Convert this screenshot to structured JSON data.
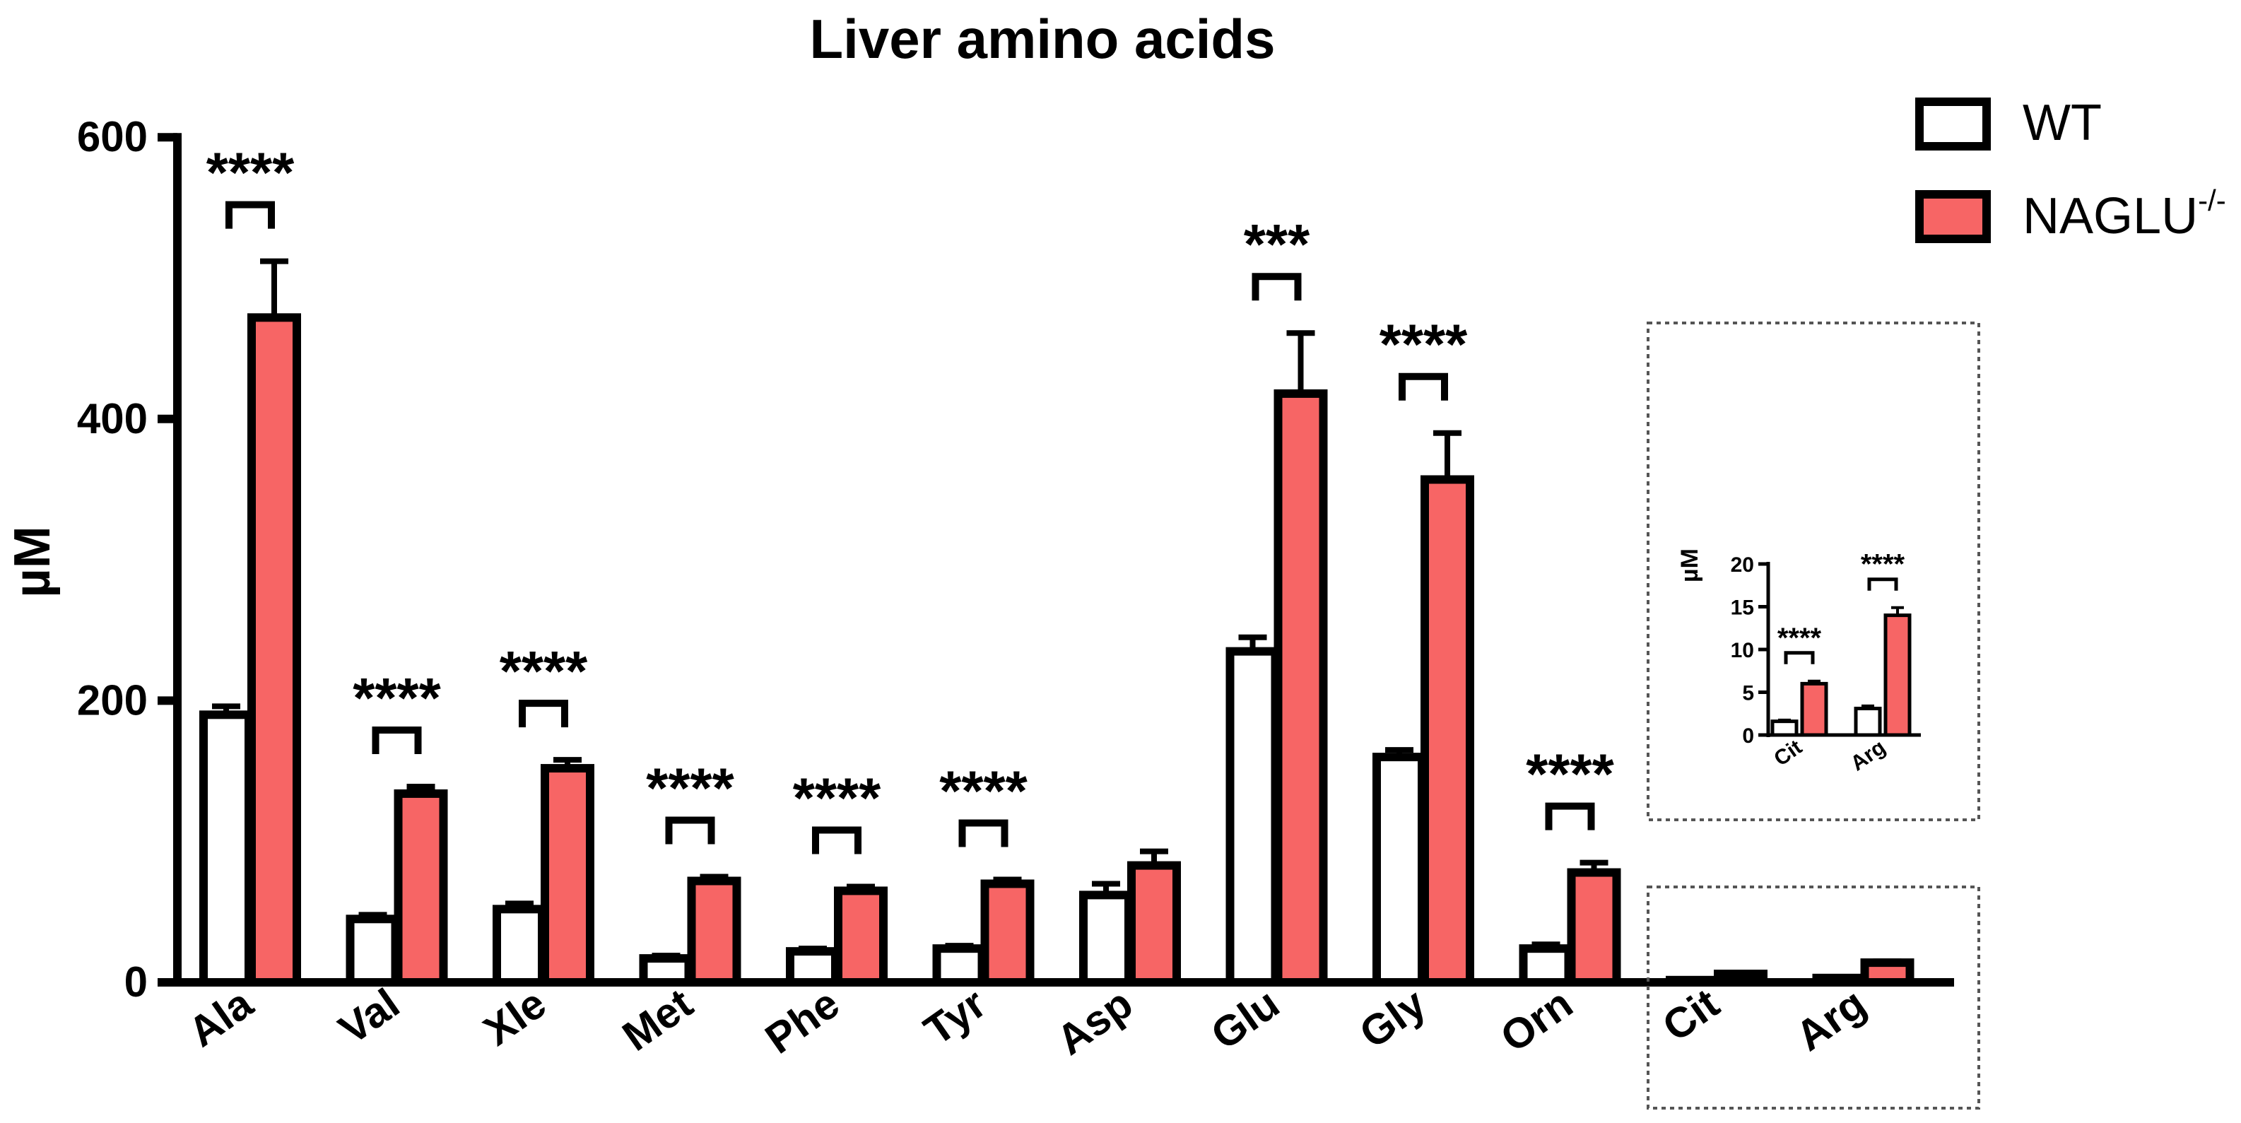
{
  "colors": {
    "wt_fill": "#ffffff",
    "naglu_fill": "#f76565",
    "stroke": "#000000",
    "box_stroke": "#555555"
  },
  "chart_data": [
    {
      "type": "bar",
      "title": "Liver amino acids",
      "ylabel": "µM",
      "xlabel": "",
      "ylim": [
        0,
        600
      ],
      "yticks": [
        "0",
        "200",
        "400",
        "600"
      ],
      "categories": [
        "Ala",
        "Val",
        "Xle",
        "Met",
        "Phe",
        "Tyr",
        "Asp",
        "Glu",
        "Gly",
        "Orn",
        "Cit",
        "Arg"
      ],
      "series": [
        {
          "name": "WT",
          "values": [
            190,
            45,
            52,
            17,
            22,
            24,
            62,
            235,
            160,
            24,
            1.6,
            3.1
          ],
          "errors": [
            6,
            3,
            4,
            2,
            2,
            2,
            8,
            10,
            5,
            3,
            0.15,
            0.3
          ]
        },
        {
          "name": "NAGLU-/-",
          "values": [
            472,
            134,
            152,
            72,
            65,
            70,
            83,
            418,
            357,
            78,
            6,
            14
          ],
          "errors": [
            40,
            5,
            6,
            3,
            3,
            3,
            10,
            43,
            33,
            7,
            0.3,
            0.9
          ]
        }
      ],
      "significance": [
        "****",
        "****",
        "****",
        "****",
        "****",
        "****",
        "",
        "***",
        "****",
        "****",
        "",
        ""
      ],
      "legend": {
        "position": "top-right",
        "entries": [
          "WT",
          "NAGLU",
          "-/-"
        ]
      },
      "grid": false
    },
    {
      "type": "bar",
      "title": "",
      "ylabel": "µM",
      "xlabel": "",
      "ylim": [
        0,
        20
      ],
      "yticks": [
        "0",
        "5",
        "10",
        "15",
        "20"
      ],
      "categories": [
        "Cit",
        "Arg"
      ],
      "series": [
        {
          "name": "WT",
          "values": [
            1.6,
            3.1
          ],
          "errors": [
            0.15,
            0.3
          ]
        },
        {
          "name": "NAGLU-/-",
          "values": [
            6,
            14
          ],
          "errors": [
            0.3,
            0.9
          ]
        }
      ],
      "significance": [
        "****",
        "****"
      ],
      "grid": false
    }
  ]
}
